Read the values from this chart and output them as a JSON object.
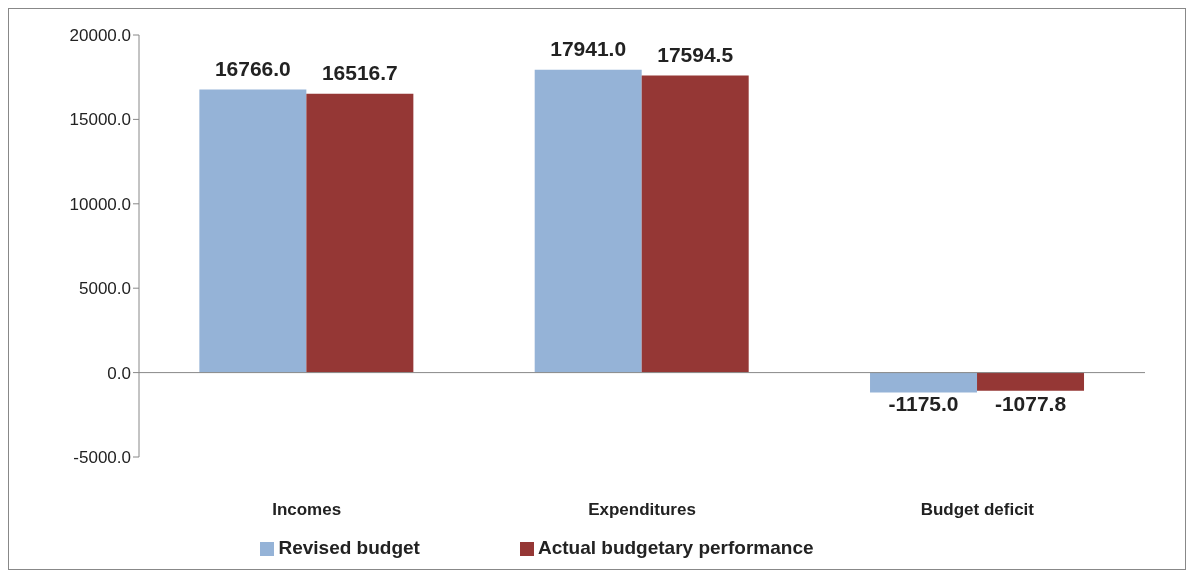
{
  "chart_data": {
    "type": "bar",
    "categories": [
      "Incomes",
      "Expenditures",
      "Budget deficit"
    ],
    "series": [
      {
        "name": "Revised budget",
        "color": "#95b3d7",
        "values": [
          16766.0,
          17941.0,
          -1175.0
        ],
        "value_labels": [
          "16766.0",
          "17941.0",
          "-1175.0"
        ]
      },
      {
        "name": "Actual budgetary performance",
        "color": "#953735",
        "values": [
          16516.7,
          17594.5,
          -1077.8
        ],
        "value_labels": [
          "16516.7",
          "17594.5",
          "-1077.8"
        ]
      }
    ],
    "ylim": [
      -5000,
      20000
    ],
    "yticks": [
      {
        "value": -5000,
        "label": "-5000.0"
      },
      {
        "value": 0,
        "label": "0.0"
      },
      {
        "value": 5000,
        "label": "5000.0"
      },
      {
        "value": 10000,
        "label": "10000.0"
      },
      {
        "value": 15000,
        "label": "15000.0"
      },
      {
        "value": 20000,
        "label": "20000.0"
      }
    ],
    "legend": "bottom"
  }
}
